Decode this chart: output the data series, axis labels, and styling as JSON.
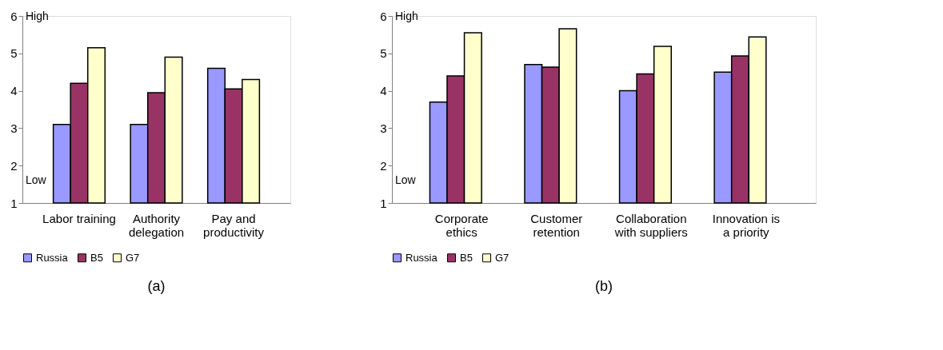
{
  "chart_data": [
    {
      "type": "bar",
      "title": "(a)",
      "categories": [
        "Labor training",
        "Authority delegation",
        "Pay and productivity"
      ],
      "ylim": [
        1,
        6
      ],
      "yticks": [
        1,
        2,
        3,
        4,
        5,
        6
      ],
      "grid": false,
      "legend": "bottom",
      "annotations": [
        "High",
        "Low"
      ],
      "series": [
        {
          "name": "Russia",
          "color": "#9999ff",
          "values": [
            3.1,
            3.1,
            4.6
          ]
        },
        {
          "name": "B5",
          "color": "#993366",
          "values": [
            4.2,
            3.95,
            4.05
          ]
        },
        {
          "name": "G7",
          "color": "#ffffcc",
          "values": [
            5.15,
            4.9,
            4.3
          ]
        }
      ]
    },
    {
      "type": "bar",
      "title": "(b)",
      "categories": [
        "Corporate ethics",
        "Customer retention",
        "Collaboration with suppliers",
        "Innovation is a priority"
      ],
      "ylim": [
        1,
        6
      ],
      "yticks": [
        1,
        2,
        3,
        4,
        5,
        6
      ],
      "grid": false,
      "legend": "bottom",
      "annotations": [
        "High",
        "Low"
      ],
      "series": [
        {
          "name": "Russia",
          "color": "#9999ff",
          "values": [
            3.7,
            4.7,
            4.0,
            4.5
          ]
        },
        {
          "name": "B5",
          "color": "#993366",
          "values": [
            4.4,
            4.63,
            4.45,
            4.93
          ]
        },
        {
          "name": "G7",
          "color": "#ffffcc",
          "values": [
            5.55,
            5.66,
            5.19,
            5.44
          ]
        }
      ]
    }
  ]
}
